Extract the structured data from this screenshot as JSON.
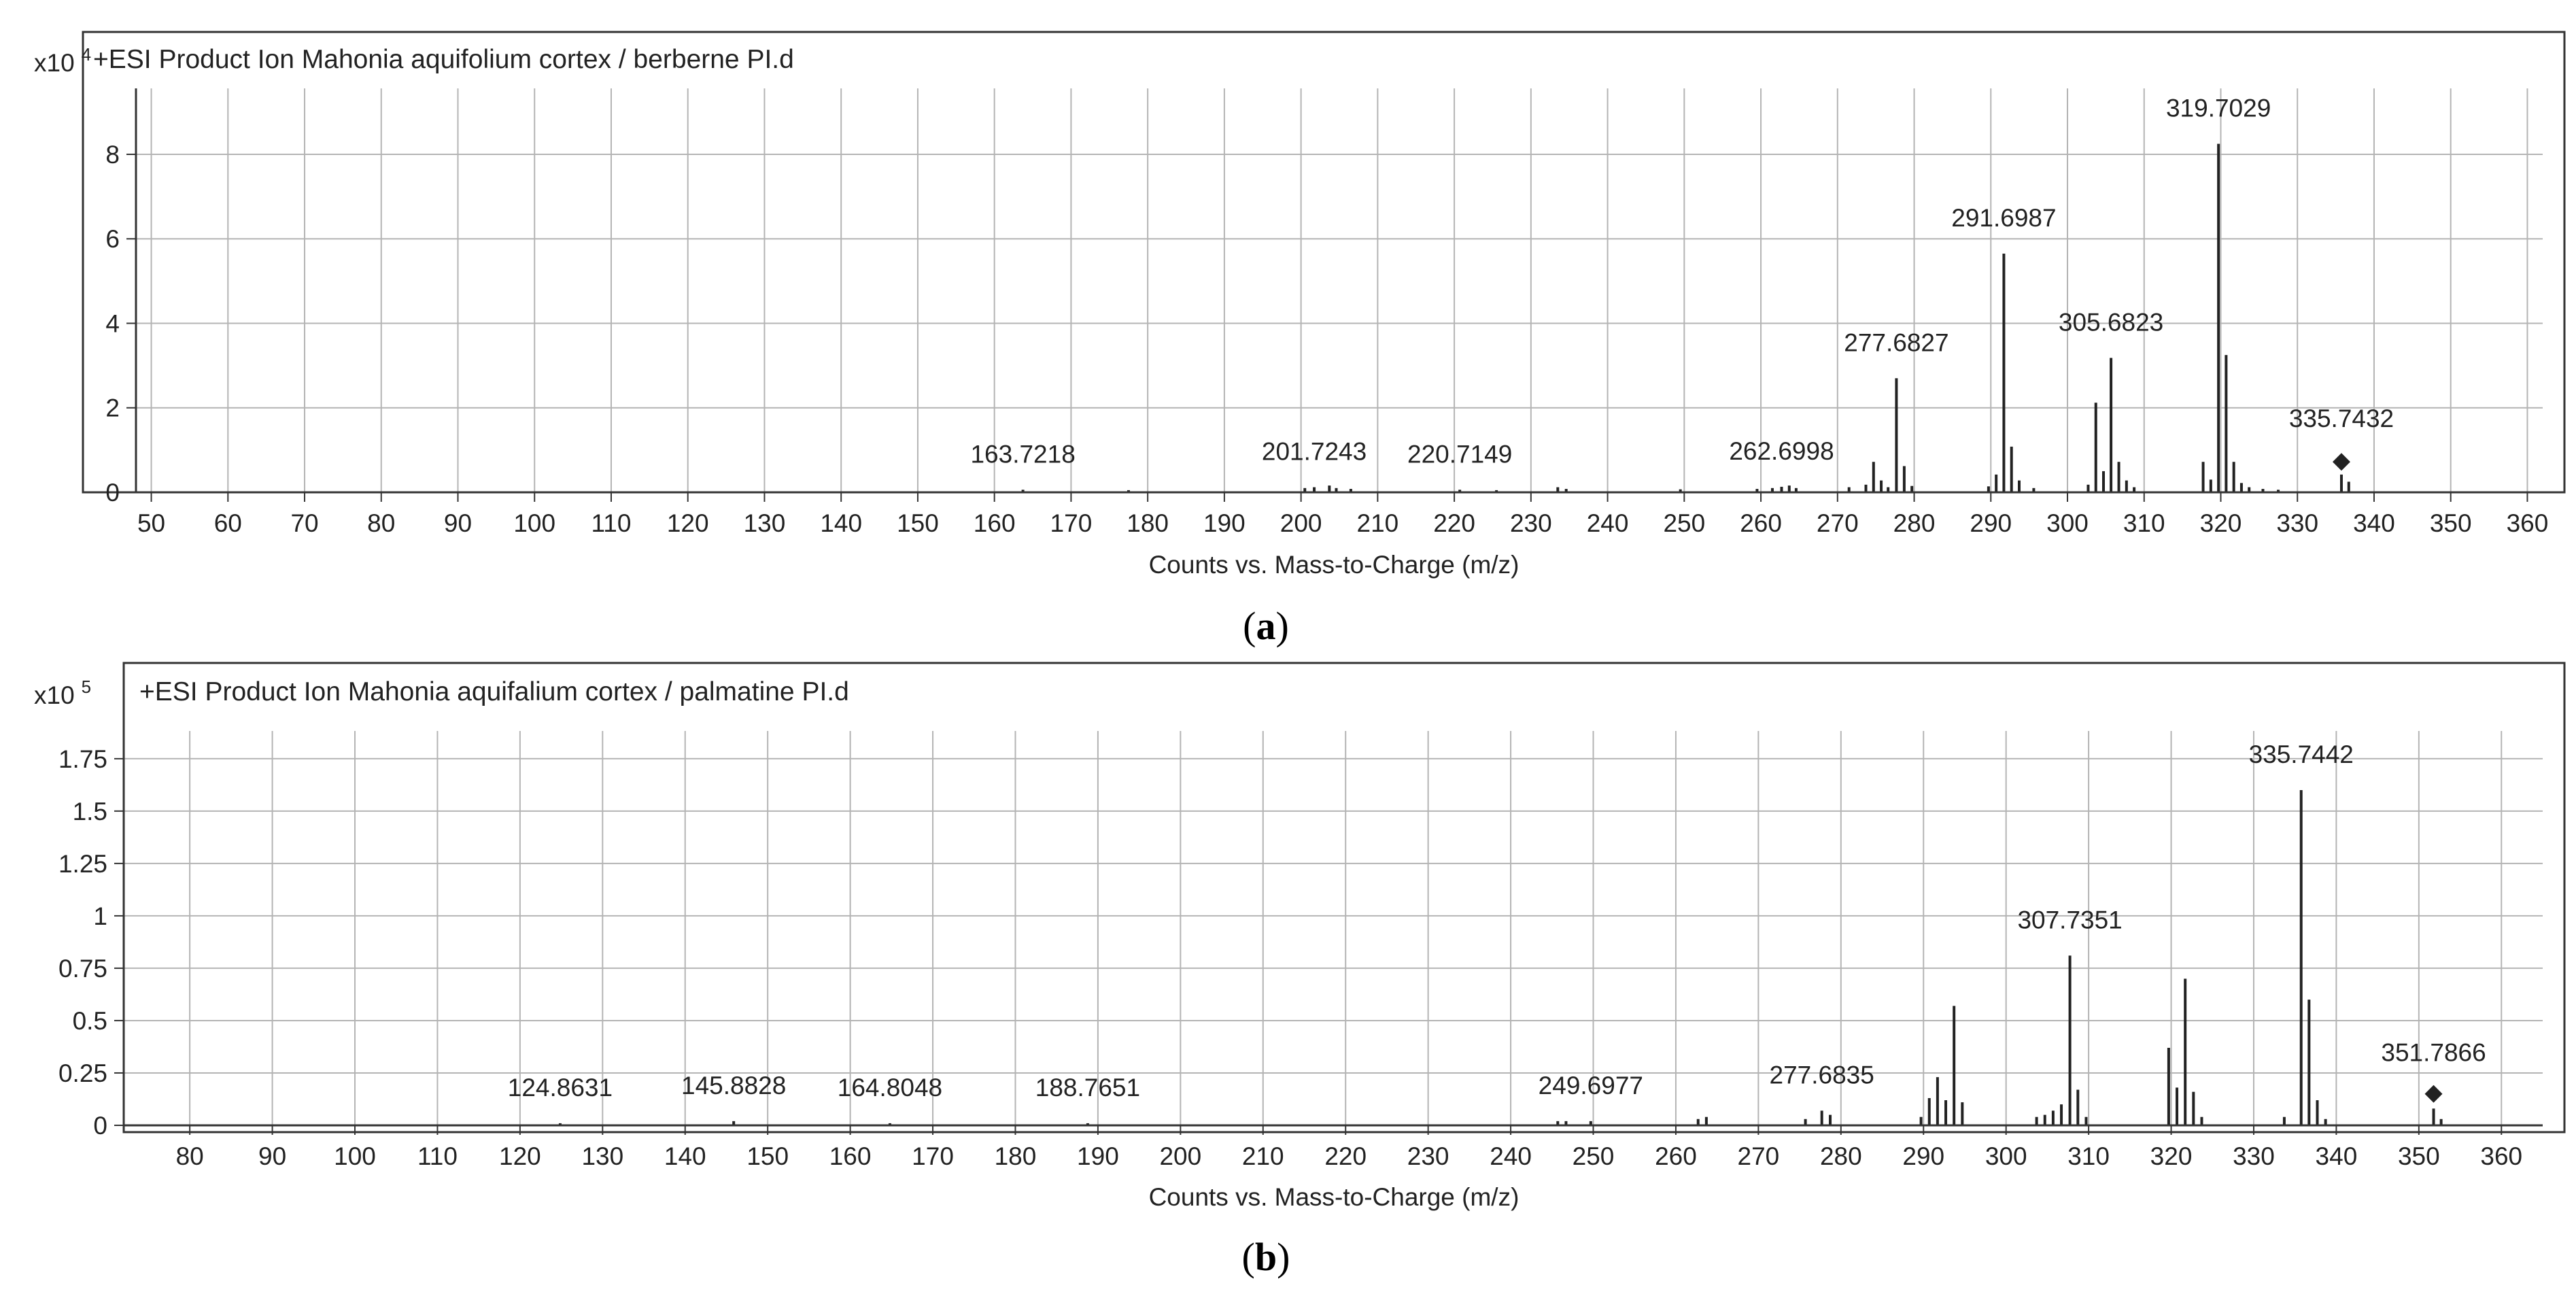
{
  "chart_data": [
    {
      "type": "bar",
      "panel_label": "a",
      "title": "+ESI Product Ion Mahonia aquifolium cortex / berberne PI.d",
      "xlabel": "Counts vs. Mass-to-Charge (m/z)",
      "ylabel": "",
      "y_multiplier": "x10",
      "y_multiplier_exp": "4",
      "xlim": [
        48,
        362
      ],
      "ylim": [
        0,
        9.4
      ],
      "x_ticks": [
        50,
        60,
        70,
        80,
        90,
        100,
        110,
        120,
        130,
        140,
        150,
        160,
        170,
        180,
        190,
        200,
        210,
        220,
        230,
        240,
        250,
        260,
        270,
        280,
        290,
        300,
        310,
        320,
        330,
        340,
        350,
        360
      ],
      "y_ticks": [
        0,
        2,
        4,
        6,
        8
      ],
      "y_tick_labels": [
        "0",
        "2",
        "4",
        "6",
        "8"
      ],
      "grid": true,
      "precursor": {
        "x": 335.7432,
        "y": 0.72
      },
      "peaks": [
        {
          "x": 163.7218,
          "y": 0.06,
          "label": "163.7218"
        },
        {
          "x": 177.5,
          "y": 0.05
        },
        {
          "x": 200.5,
          "y": 0.1
        },
        {
          "x": 201.7243,
          "y": 0.12,
          "label": "201.7243"
        },
        {
          "x": 203.7,
          "y": 0.16
        },
        {
          "x": 204.6,
          "y": 0.1
        },
        {
          "x": 206.5,
          "y": 0.08
        },
        {
          "x": 220.7149,
          "y": 0.06,
          "label": "220.7149"
        },
        {
          "x": 225.5,
          "y": 0.05
        },
        {
          "x": 233.5,
          "y": 0.12
        },
        {
          "x": 234.6,
          "y": 0.08
        },
        {
          "x": 249.5,
          "y": 0.07
        },
        {
          "x": 259.5,
          "y": 0.08
        },
        {
          "x": 261.5,
          "y": 0.1
        },
        {
          "x": 262.6998,
          "y": 0.13,
          "label": "262.6998"
        },
        {
          "x": 263.7,
          "y": 0.16
        },
        {
          "x": 264.6,
          "y": 0.1
        },
        {
          "x": 271.5,
          "y": 0.12
        },
        {
          "x": 273.7,
          "y": 0.18
        },
        {
          "x": 274.7,
          "y": 0.72
        },
        {
          "x": 275.7,
          "y": 0.28
        },
        {
          "x": 276.6,
          "y": 0.12
        },
        {
          "x": 277.6827,
          "y": 2.7,
          "label": "277.6827"
        },
        {
          "x": 278.7,
          "y": 0.62
        },
        {
          "x": 279.7,
          "y": 0.15
        },
        {
          "x": 289.7,
          "y": 0.14
        },
        {
          "x": 290.7,
          "y": 0.42
        },
        {
          "x": 291.6987,
          "y": 5.65,
          "label": "291.6987"
        },
        {
          "x": 292.7,
          "y": 1.08
        },
        {
          "x": 293.7,
          "y": 0.28
        },
        {
          "x": 295.6,
          "y": 0.1
        },
        {
          "x": 302.7,
          "y": 0.18
        },
        {
          "x": 303.7,
          "y": 2.12
        },
        {
          "x": 304.7,
          "y": 0.5
        },
        {
          "x": 305.6823,
          "y": 3.18,
          "label": "305.6823"
        },
        {
          "x": 306.7,
          "y": 0.72
        },
        {
          "x": 307.7,
          "y": 0.28
        },
        {
          "x": 308.7,
          "y": 0.12
        },
        {
          "x": 317.7,
          "y": 0.72
        },
        {
          "x": 318.7,
          "y": 0.3
        },
        {
          "x": 319.7029,
          "y": 8.25,
          "label": "319.7029"
        },
        {
          "x": 320.7,
          "y": 3.25
        },
        {
          "x": 321.7,
          "y": 0.72
        },
        {
          "x": 322.7,
          "y": 0.22
        },
        {
          "x": 323.7,
          "y": 0.12
        },
        {
          "x": 325.5,
          "y": 0.08
        },
        {
          "x": 327.5,
          "y": 0.06
        },
        {
          "x": 335.7432,
          "y": 0.42,
          "label": "335.7432"
        },
        {
          "x": 336.7,
          "y": 0.25
        }
      ]
    },
    {
      "type": "bar",
      "panel_label": "b",
      "title": "+ESI Product Ion Mahonia aquifalium cortex / palmatine PI.d",
      "xlabel": "Counts vs. Mass-to-Charge (m/z)",
      "ylabel": "",
      "y_multiplier": "x10",
      "y_multiplier_exp": "5",
      "xlim": [
        72,
        365
      ],
      "ylim": [
        0,
        1.85
      ],
      "x_ticks": [
        80,
        90,
        100,
        110,
        120,
        130,
        140,
        150,
        160,
        170,
        180,
        190,
        200,
        210,
        220,
        230,
        240,
        250,
        260,
        270,
        280,
        290,
        300,
        310,
        320,
        330,
        340,
        350,
        360
      ],
      "y_ticks": [
        0,
        0.25,
        0.5,
        0.75,
        1,
        1.25,
        1.5,
        1.75
      ],
      "y_tick_labels": [
        "0",
        "0.25",
        "0.5",
        "0.75",
        "1",
        "1.25",
        "1.5",
        "1.75"
      ],
      "grid": true,
      "precursor": {
        "x": 351.7866,
        "y": 0.15
      },
      "peaks": [
        {
          "x": 124.8631,
          "y": 0.01,
          "label": "124.8631"
        },
        {
          "x": 145.8828,
          "y": 0.02,
          "label": "145.8828"
        },
        {
          "x": 164.8048,
          "y": 0.01,
          "label": "164.8048"
        },
        {
          "x": 188.7651,
          "y": 0.01,
          "label": "188.7651"
        },
        {
          "x": 245.7,
          "y": 0.02
        },
        {
          "x": 246.7,
          "y": 0.02
        },
        {
          "x": 249.6977,
          "y": 0.02,
          "label": "249.6977"
        },
        {
          "x": 262.7,
          "y": 0.03
        },
        {
          "x": 263.7,
          "y": 0.04
        },
        {
          "x": 275.7,
          "y": 0.03
        },
        {
          "x": 277.6835,
          "y": 0.07,
          "label": "277.6835"
        },
        {
          "x": 278.7,
          "y": 0.05
        },
        {
          "x": 289.7,
          "y": 0.04
        },
        {
          "x": 290.7,
          "y": 0.13
        },
        {
          "x": 291.7,
          "y": 0.23
        },
        {
          "x": 292.7,
          "y": 0.12
        },
        {
          "x": 293.7,
          "y": 0.57
        },
        {
          "x": 294.7,
          "y": 0.11
        },
        {
          "x": 303.7,
          "y": 0.04
        },
        {
          "x": 304.7,
          "y": 0.05
        },
        {
          "x": 305.7,
          "y": 0.07
        },
        {
          "x": 306.7,
          "y": 0.1
        },
        {
          "x": 307.7351,
          "y": 0.81,
          "label": "307.7351"
        },
        {
          "x": 308.7,
          "y": 0.17
        },
        {
          "x": 309.7,
          "y": 0.04
        },
        {
          "x": 319.7,
          "y": 0.37
        },
        {
          "x": 320.7,
          "y": 0.18
        },
        {
          "x": 321.7,
          "y": 0.7
        },
        {
          "x": 322.7,
          "y": 0.16
        },
        {
          "x": 323.7,
          "y": 0.04
        },
        {
          "x": 333.7,
          "y": 0.04
        },
        {
          "x": 335.7442,
          "y": 1.6,
          "label": "335.7442"
        },
        {
          "x": 336.7,
          "y": 0.6
        },
        {
          "x": 337.7,
          "y": 0.12
        },
        {
          "x": 338.7,
          "y": 0.03
        },
        {
          "x": 351.7866,
          "y": 0.08,
          "label": "351.7866"
        },
        {
          "x": 352.7,
          "y": 0.03
        }
      ]
    }
  ],
  "colors": {
    "peak": "#222222",
    "grid": "#b4b4b4",
    "axis": "#333333",
    "text": "#222222"
  }
}
